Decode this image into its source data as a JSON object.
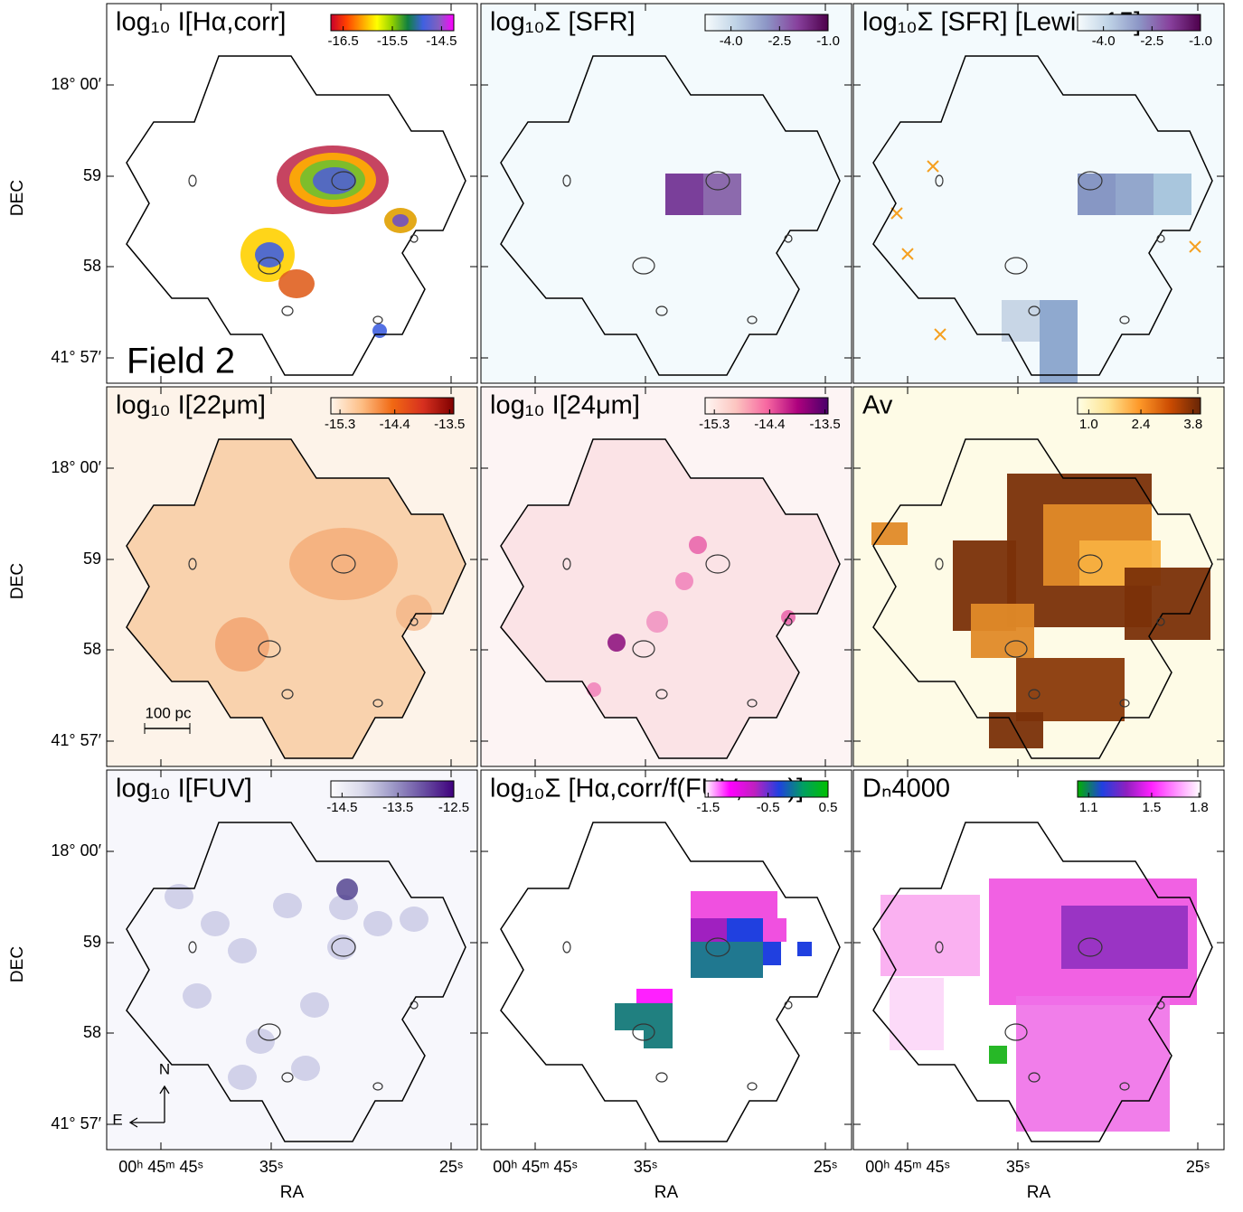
{
  "axes": {
    "y_label": "DEC",
    "x_label": "RA",
    "yticks": [
      "18° 00′",
      "59",
      "58",
      "41° 57′"
    ],
    "xticks": [
      "00ʰ 45ᵐ 45ˢ",
      "35ˢ",
      "25ˢ"
    ]
  },
  "panels": [
    {
      "title": "log₁₀ I[Hα,corr]",
      "colorbar": {
        "lim": [
          -16.75,
          -14.25
        ],
        "ticks": [
          -16.5,
          -15.5,
          -14.5
        ],
        "colors": [
          "#c8002c",
          "#ff4000",
          "#ffa000",
          "#ffff00",
          "#90d000",
          "#108040",
          "#4060e0",
          "#8060c0",
          "#ff00ff"
        ]
      }
    },
    {
      "title": "log₁₀Σ [SFR]",
      "colorbar": {
        "lim": [
          -4.8,
          -1.0
        ],
        "ticks": [
          {
            "value": -4.0,
            "label": "-4.0"
          },
          -2.5,
          {
            "value": -1.0,
            "label": "-1.0"
          }
        ],
        "colors": [
          "#f7fcfd",
          "#bfd3e6",
          "#8c96c6",
          "#88419d",
          "#4d004b"
        ]
      }
    },
    {
      "title": "log₁₀Σ [SFR] [Lewis+15]",
      "colorbar": {
        "lim": [
          -4.8,
          -1.0
        ],
        "ticks": [
          {
            "value": -4.0,
            "label": "-4.0"
          },
          -2.5,
          {
            "value": -1.0,
            "label": "-1.0"
          }
        ],
        "colors": [
          "#f7fcfd",
          "#bfd3e6",
          "#8c96c6",
          "#88419d",
          "#4d004b"
        ]
      }
    },
    {
      "title": "log₁₀ I[22μm]",
      "colorbar": {
        "lim": [
          -15.45,
          -13.43
        ],
        "ticks": [
          -15.3,
          -14.4,
          -13.5
        ],
        "colors": [
          "#fff5eb",
          "#fdbe85",
          "#f16913",
          "#d7301f",
          "#7f0000"
        ]
      }
    },
    {
      "title": "log₁₀ I[24μm]",
      "colorbar": {
        "lim": [
          -15.45,
          -13.45
        ],
        "ticks": [
          -15.3,
          -14.4,
          -13.5
        ],
        "colors": [
          "#fff7f3",
          "#fcc5c0",
          "#f768a1",
          "#ae017e",
          "#49006a"
        ]
      }
    },
    {
      "title": "Av",
      "colorbar": {
        "lim": [
          0.7,
          4.0
        ],
        "ticks": [
          {
            "value": 1.0,
            "label": "1.0"
          },
          2.4,
          3.8
        ],
        "colors": [
          "#ffffe5",
          "#fee391",
          "#fe9929",
          "#cc4c02",
          "#662506"
        ]
      }
    },
    {
      "title": "log₁₀ I[FUV]",
      "colorbar": {
        "lim": [
          -14.7,
          -12.5
        ],
        "ticks": [
          -14.5,
          -13.5,
          -12.5
        ],
        "colors": [
          "#fcfbfd",
          "#dadaeb",
          "#9e9ac8",
          "#6a51a3",
          "#3f007d"
        ]
      }
    },
    {
      "title": "log₁₀Σ [Hα,corr/f(FUV,corr)]",
      "colorbar": {
        "lim": [
          -1.55,
          0.5
        ],
        "ticks": [
          -1.5,
          -0.5,
          0.5
        ],
        "colors": [
          "#ffffff",
          "#ff00ff",
          "#c020c0",
          "#2040e0",
          "#00a060",
          "#00c000"
        ]
      }
    },
    {
      "title": "Dₙ4000",
      "colorbar": {
        "lim": [
          1.03,
          1.81
        ],
        "ticks": [
          1.1,
          1.5,
          1.8
        ],
        "colors": [
          "#00b000",
          "#2040e0",
          "#9020c0",
          "#ff20ff",
          "#ff90ff",
          "#ffffff"
        ]
      }
    }
  ],
  "annotations": {
    "field": "Field 2",
    "scale": "100 pc",
    "north": "N",
    "east": "E"
  }
}
